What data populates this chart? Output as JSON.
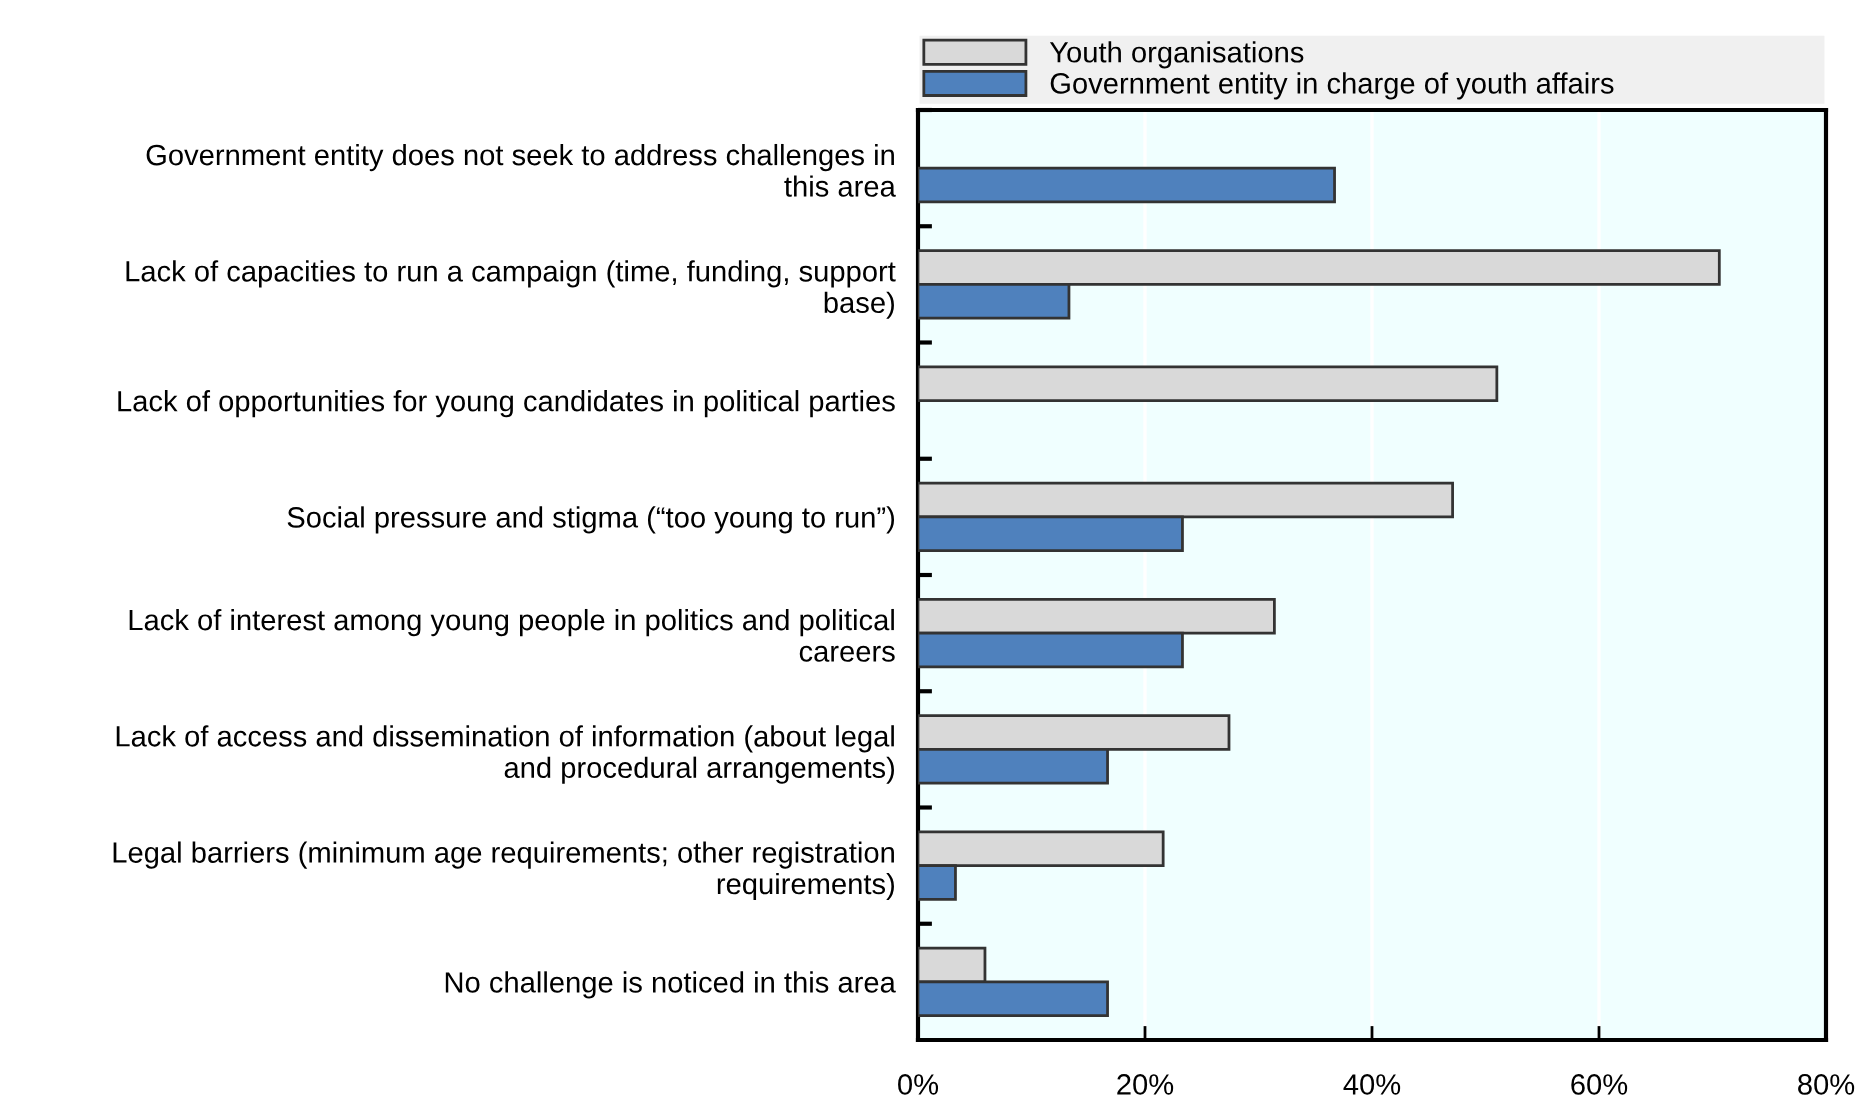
{
  "chart_data": {
    "type": "bar",
    "orientation": "horizontal",
    "categories": [
      "Government entity does not seek to address challenges in\nthis area",
      "Lack of capacities to run a campaign (time, funding, support\nbase)",
      "Lack of opportunities for young candidates in political parties",
      "Social pressure and stigma (“too young to run”)",
      "Lack of interest among young people in politics and political\ncareers",
      "Lack of access and dissemination of information (about legal\nand procedural arrangements)",
      "Legal barriers (minimum age requirements; other registration\nrequirements)",
      "No challenge is noticed in this area"
    ],
    "series": [
      {
        "name": "Youth organisations",
        "color": "#d9d9d9",
        "values": [
          null,
          70.6,
          51.0,
          47.1,
          31.4,
          27.4,
          21.6,
          5.9
        ]
      },
      {
        "name": "Government entity in charge of youth affairs",
        "color": "#4f81bd",
        "values": [
          36.7,
          13.3,
          null,
          23.3,
          23.3,
          16.7,
          3.3,
          16.7
        ]
      }
    ],
    "xlim": [
      0,
      80
    ],
    "xticks": [
      {
        "value": 0,
        "label": "0%"
      },
      {
        "value": 20,
        "label": "20%"
      },
      {
        "value": 40,
        "label": "40%"
      },
      {
        "value": 60,
        "label": "60%"
      },
      {
        "value": 80,
        "label": "80%"
      }
    ],
    "grid": "x",
    "legend": "top"
  }
}
